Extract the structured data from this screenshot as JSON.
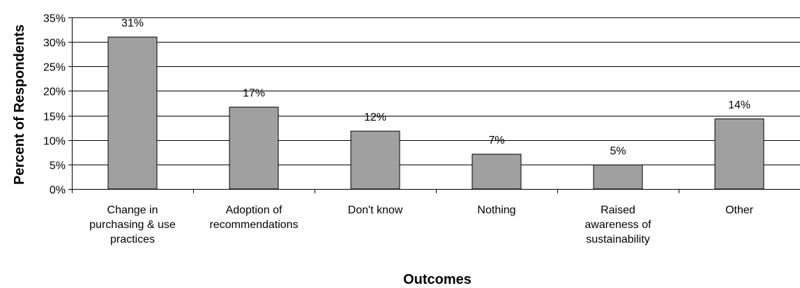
{
  "chart_data": {
    "type": "bar",
    "categories": [
      [
        "Change in",
        "purchasing & use",
        "practices"
      ],
      [
        "Adoption of",
        "recommendations"
      ],
      [
        "Don't know"
      ],
      [
        "Nothing"
      ],
      [
        "Raised",
        "awareness of",
        "sustainability"
      ],
      [
        "Other"
      ]
    ],
    "values": [
      31,
      16.7,
      11.8,
      7.1,
      4.9,
      14.3
    ],
    "data_labels": [
      "31%",
      "17%",
      "12%",
      "7%",
      "5%",
      "14%"
    ],
    "y_ticks": [
      "0%",
      "5%",
      "10%",
      "15%",
      "20%",
      "25%",
      "30%",
      "35%"
    ],
    "ylim": [
      0,
      35
    ],
    "ylabel": "Percent of Respondents",
    "xlabel": "Outcomes",
    "grid": true,
    "bar_color": "#a0a0a0"
  }
}
